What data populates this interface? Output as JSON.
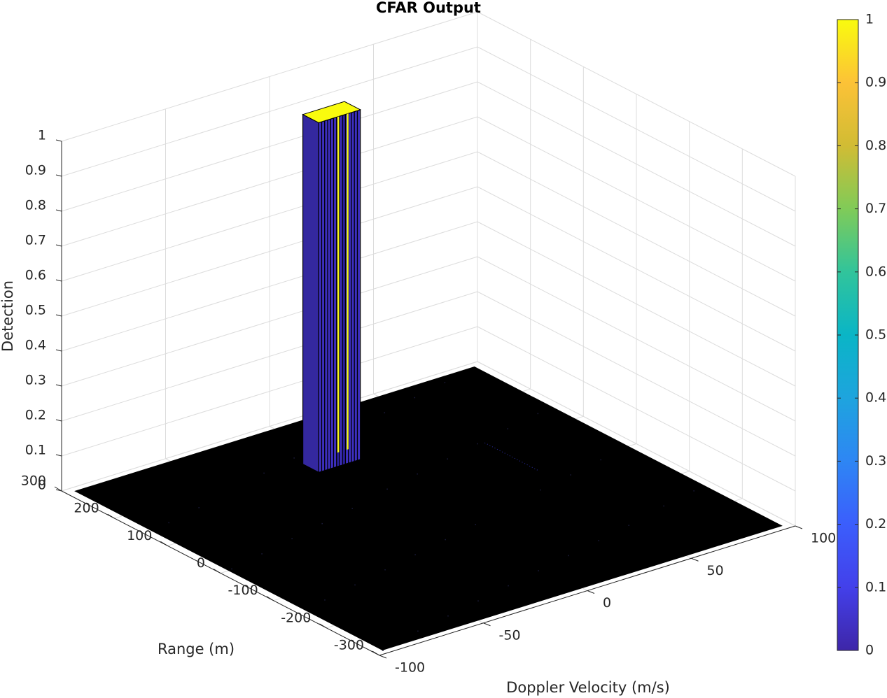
{
  "chart_data": {
    "type": "surface",
    "title": "CFAR Output",
    "xlabel": "Doppler Velocity (m/s)",
    "ylabel": "Range (m)",
    "zlabel": "Detection",
    "xlim": [
      -100,
      100
    ],
    "ylim": [
      -300,
      300
    ],
    "zlim": [
      0,
      1
    ],
    "x_ticks": [
      -100,
      -50,
      0,
      50,
      100
    ],
    "y_ticks": [
      -300,
      -200,
      -100,
      0,
      100,
      200,
      300
    ],
    "z_ticks": [
      0,
      0.1,
      0.2,
      0.3,
      0.4,
      0.5,
      0.6,
      0.7,
      0.8,
      0.9,
      1
    ],
    "grid": true,
    "colormap": "parula",
    "colorbar": {
      "ticks": [
        0,
        0.1,
        0.2,
        0.3,
        0.4,
        0.5,
        0.6,
        0.7,
        0.8,
        0.9,
        1
      ],
      "range": [
        0,
        1
      ],
      "placement": "right"
    },
    "detection_region": {
      "doppler_range": [
        -12,
        8
      ],
      "range_extent": [
        160,
        190
      ],
      "value": 1
    },
    "background_value": 0
  }
}
